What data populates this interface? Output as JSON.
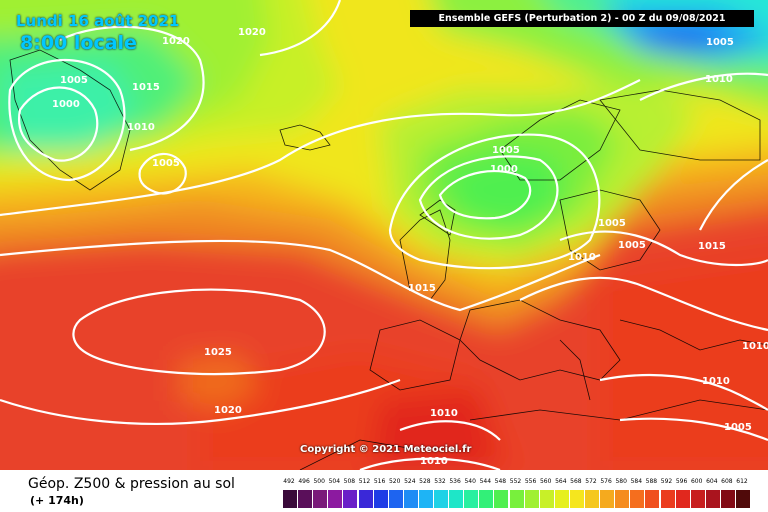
{
  "header": {
    "model_info": "Ensemble GEFS  (Perturbation 2)  -  00 Z du 09/08/2021",
    "date": "Lundi 16 août 2021",
    "time": "8:00 locale"
  },
  "footer": {
    "parameter": "Géop. Z500 & pression au sol",
    "lead_time": "(+ 174h)",
    "copyright": "Copyright © 2021 Meteociel.fr"
  },
  "isobar_labels": [
    {
      "text": "1020"
    },
    {
      "text": "1020"
    },
    {
      "text": "1005"
    },
    {
      "text": "1015"
    },
    {
      "text": "1000"
    },
    {
      "text": "1010"
    },
    {
      "text": "1005"
    },
    {
      "text": "1005"
    },
    {
      "text": "1010"
    },
    {
      "text": "1005"
    },
    {
      "text": "1000"
    },
    {
      "text": "1005"
    },
    {
      "text": "1005"
    },
    {
      "text": "1010"
    },
    {
      "text": "1015"
    },
    {
      "text": "1015"
    },
    {
      "text": "1025"
    },
    {
      "text": "1020"
    },
    {
      "text": "1010"
    },
    {
      "text": "1010"
    },
    {
      "text": "1010"
    },
    {
      "text": "1010"
    },
    {
      "text": "1005"
    }
  ],
  "legend": {
    "ticks": [
      "492",
      "496",
      "500",
      "504",
      "508",
      "512",
      "516",
      "520",
      "524",
      "528",
      "532",
      "536",
      "540",
      "544",
      "548",
      "552",
      "556",
      "560",
      "564",
      "568",
      "572",
      "576",
      "580",
      "584",
      "588",
      "592",
      "596",
      "600",
      "604",
      "608",
      "612"
    ],
    "colors": [
      "#3a0a3a",
      "#5a0f5a",
      "#7a1a7a",
      "#8c1aa0",
      "#6a1ec8",
      "#3a28d8",
      "#1e3ce6",
      "#1e64f0",
      "#1e8cf5",
      "#1eb4f5",
      "#1ed2e6",
      "#1ee6c8",
      "#28f0a0",
      "#32f078",
      "#50ef50",
      "#78f03c",
      "#a0f032",
      "#c8f028",
      "#e6f01e",
      "#f5e61e",
      "#f5c81e",
      "#f5aa1e",
      "#f58c1e",
      "#f56e1e",
      "#f0501e",
      "#eb3c1e",
      "#e1281e",
      "#c81e1e",
      "#aa141e",
      "#820a14",
      "#500a0a"
    ]
  }
}
